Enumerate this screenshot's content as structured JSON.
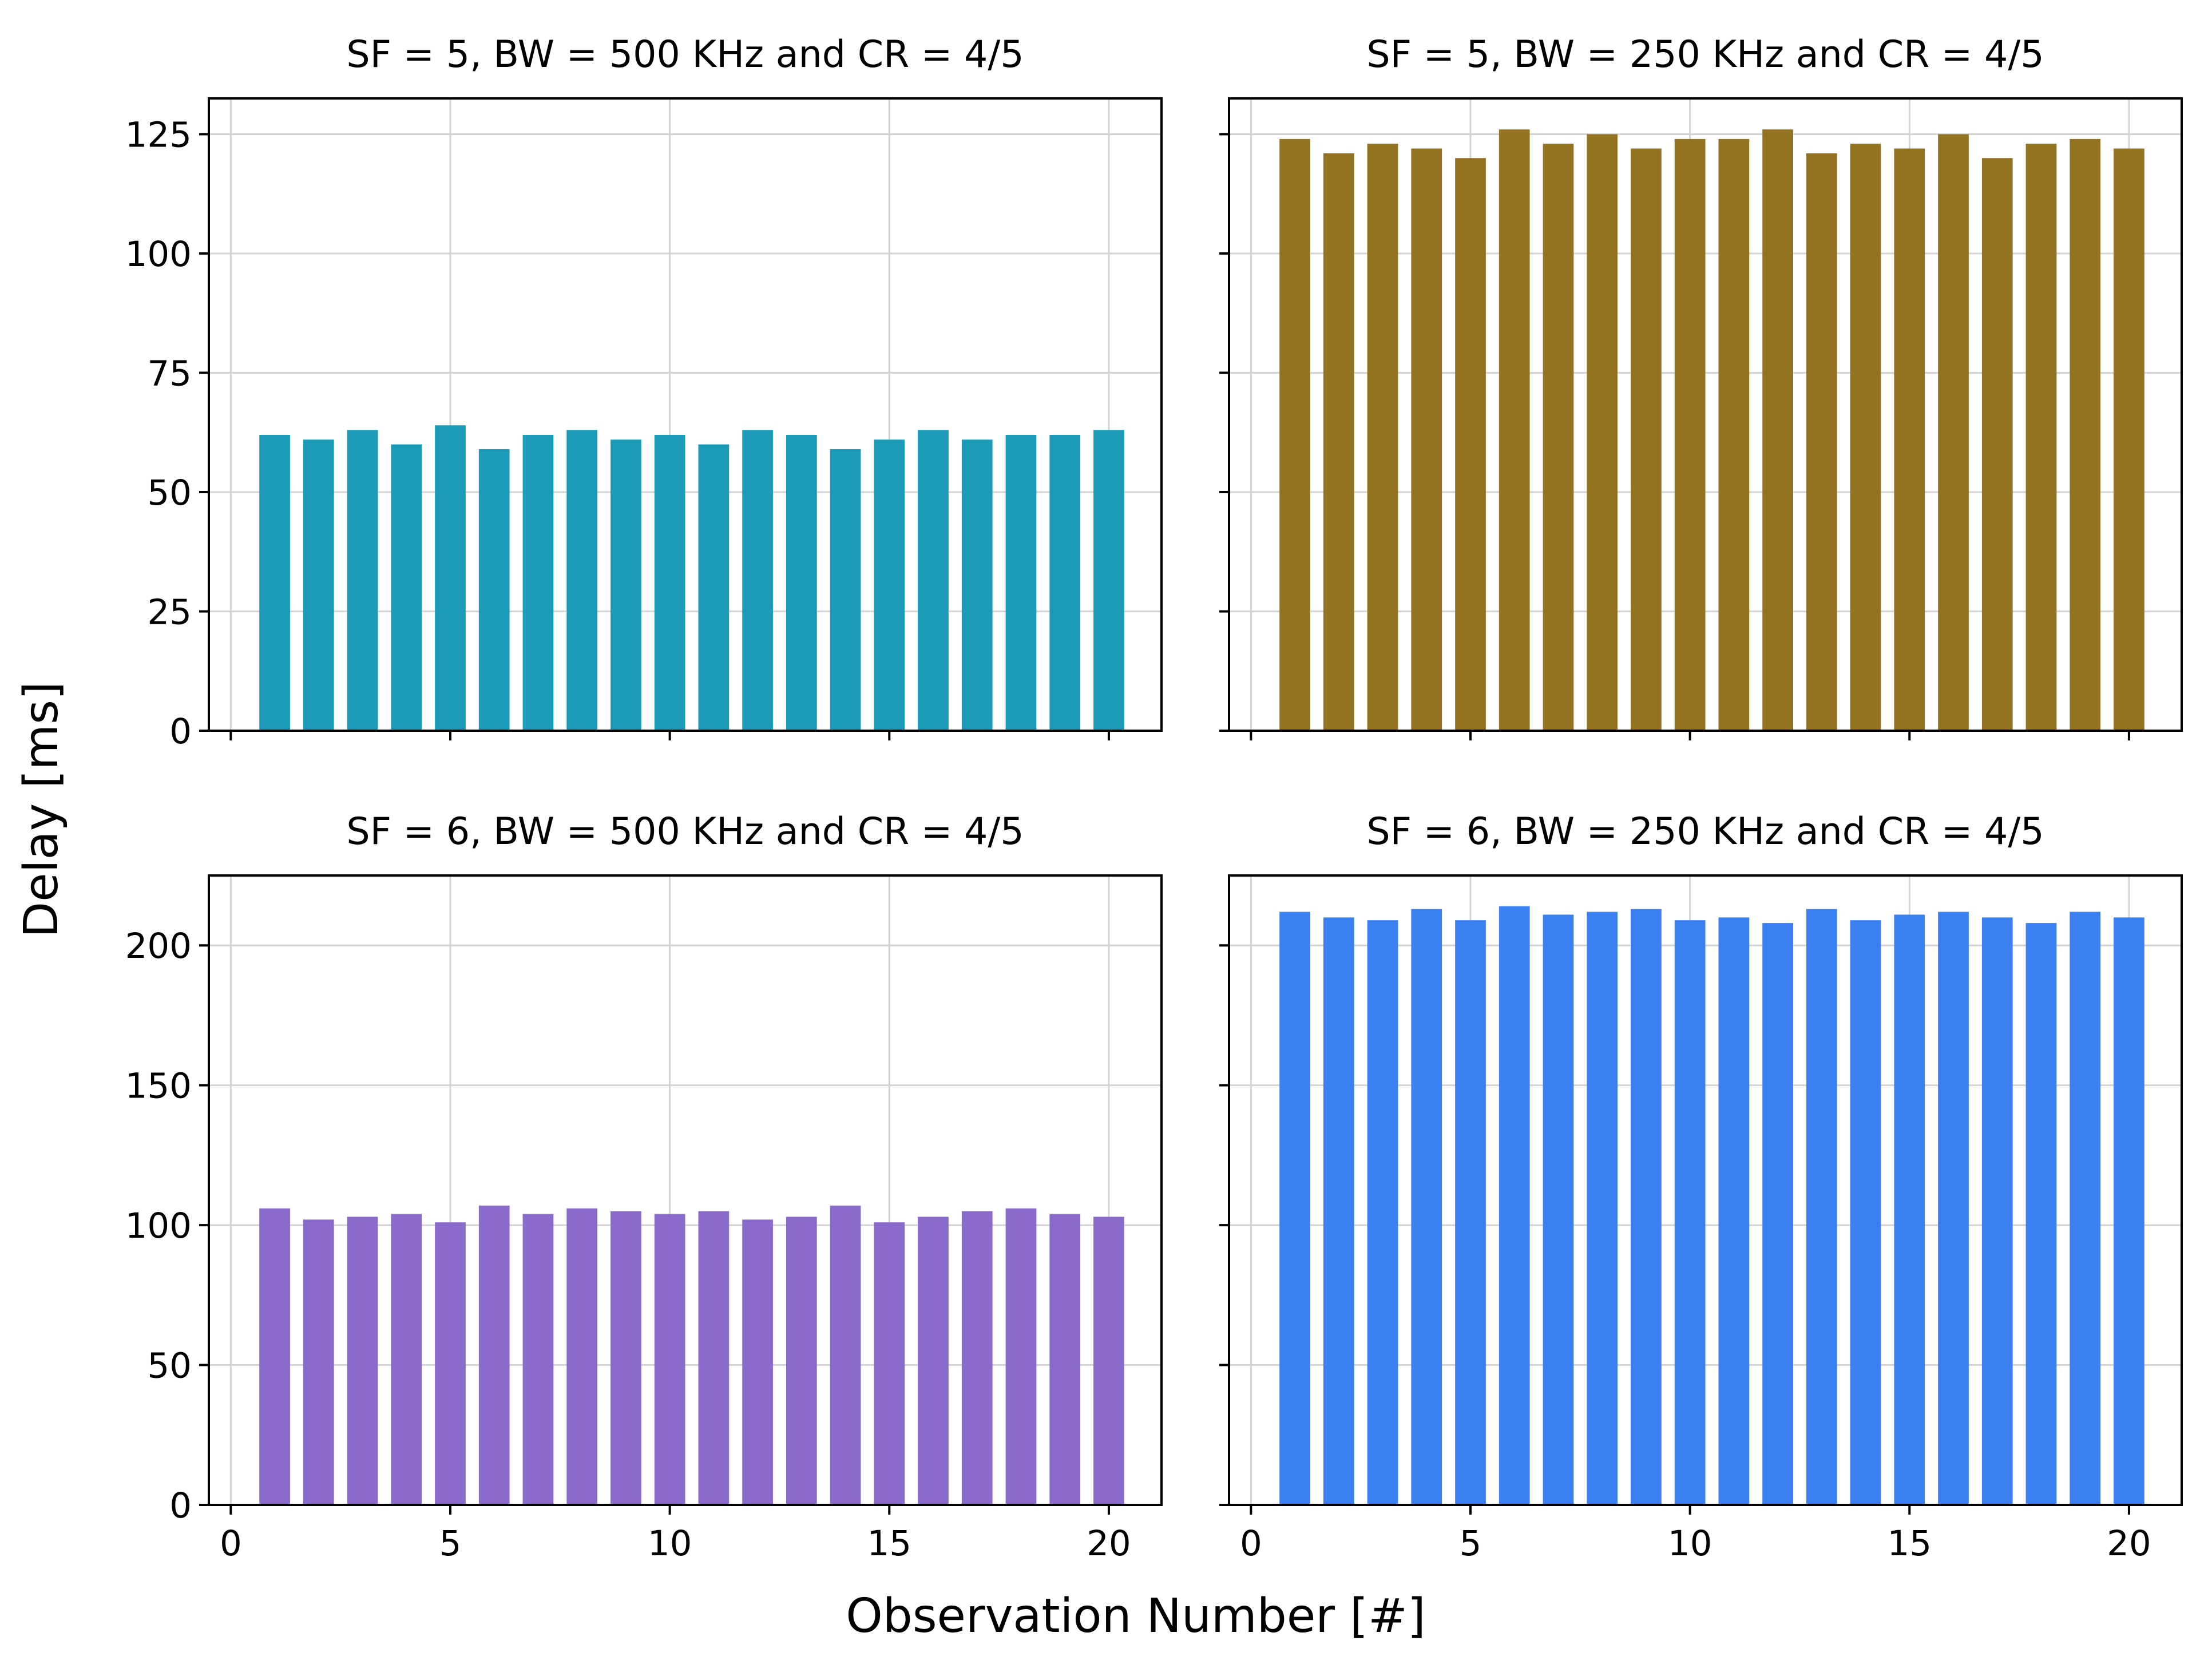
{
  "figure": {
    "xlabel": "Observation Number [#]",
    "ylabel": "Delay [ms]"
  },
  "chart_data": [
    {
      "type": "bar",
      "title": "SF = 5, BW = 500 KHz and CR = 4/5",
      "color": "#1b9bb7",
      "x": [
        1,
        2,
        3,
        4,
        5,
        6,
        7,
        8,
        9,
        10,
        11,
        12,
        13,
        14,
        15,
        16,
        17,
        18,
        19,
        20
      ],
      "values": [
        62,
        61,
        63,
        60,
        64,
        59,
        62,
        63,
        61,
        62,
        60,
        63,
        62,
        59,
        61,
        63,
        61,
        62,
        62,
        63
      ],
      "xlim": [
        -0.5,
        21.2
      ],
      "ylim": [
        0,
        132.5
      ],
      "xticks": [
        0,
        5,
        10,
        15,
        20
      ],
      "yticks": [
        0,
        25,
        50,
        75,
        100,
        125
      ],
      "show_xtick_labels": false,
      "show_ytick_labels": true,
      "grid": true
    },
    {
      "type": "bar",
      "title": "SF = 5, BW = 250 KHz and CR = 4/5",
      "color": "#937221",
      "x": [
        1,
        2,
        3,
        4,
        5,
        6,
        7,
        8,
        9,
        10,
        11,
        12,
        13,
        14,
        15,
        16,
        17,
        18,
        19,
        20
      ],
      "values": [
        124,
        121,
        123,
        122,
        120,
        126,
        123,
        125,
        122,
        124,
        124,
        126,
        121,
        123,
        122,
        125,
        120,
        123,
        124,
        122
      ],
      "xlim": [
        -0.5,
        21.2
      ],
      "ylim": [
        0,
        132.5
      ],
      "xticks": [
        0,
        5,
        10,
        15,
        20
      ],
      "yticks": [
        0,
        25,
        50,
        75,
        100,
        125
      ],
      "show_xtick_labels": false,
      "show_ytick_labels": false,
      "grid": true
    },
    {
      "type": "bar",
      "title": "SF = 6, BW = 500 KHz and CR = 4/5",
      "color": "#8a6acb",
      "x": [
        1,
        2,
        3,
        4,
        5,
        6,
        7,
        8,
        9,
        10,
        11,
        12,
        13,
        14,
        15,
        16,
        17,
        18,
        19,
        20
      ],
      "values": [
        106,
        102,
        103,
        104,
        101,
        107,
        104,
        106,
        105,
        104,
        105,
        102,
        103,
        107,
        101,
        103,
        105,
        106,
        104,
        103
      ],
      "xlim": [
        -0.5,
        21.2
      ],
      "ylim": [
        0,
        225
      ],
      "xticks": [
        0,
        5,
        10,
        15,
        20
      ],
      "xtick_labels": [
        "0",
        "5",
        "10",
        "15",
        "20"
      ],
      "yticks": [
        0,
        50,
        100,
        150,
        200
      ],
      "show_xtick_labels": true,
      "show_ytick_labels": true,
      "grid": true
    },
    {
      "type": "bar",
      "title": "SF = 6, BW = 250 KHz and CR = 4/5",
      "color": "#3a80f0",
      "x": [
        1,
        2,
        3,
        4,
        5,
        6,
        7,
        8,
        9,
        10,
        11,
        12,
        13,
        14,
        15,
        16,
        17,
        18,
        19,
        20
      ],
      "values": [
        212,
        210,
        209,
        213,
        209,
        214,
        211,
        212,
        213,
        209,
        210,
        208,
        213,
        209,
        211,
        212,
        210,
        208,
        212,
        210
      ],
      "xlim": [
        -0.5,
        21.2
      ],
      "ylim": [
        0,
        225
      ],
      "xticks": [
        0,
        5,
        10,
        15,
        20
      ],
      "xtick_labels": [
        "0",
        "5",
        "10",
        "15",
        "20"
      ],
      "yticks": [
        0,
        50,
        100,
        150,
        200
      ],
      "show_xtick_labels": true,
      "show_ytick_labels": false,
      "grid": true
    }
  ]
}
